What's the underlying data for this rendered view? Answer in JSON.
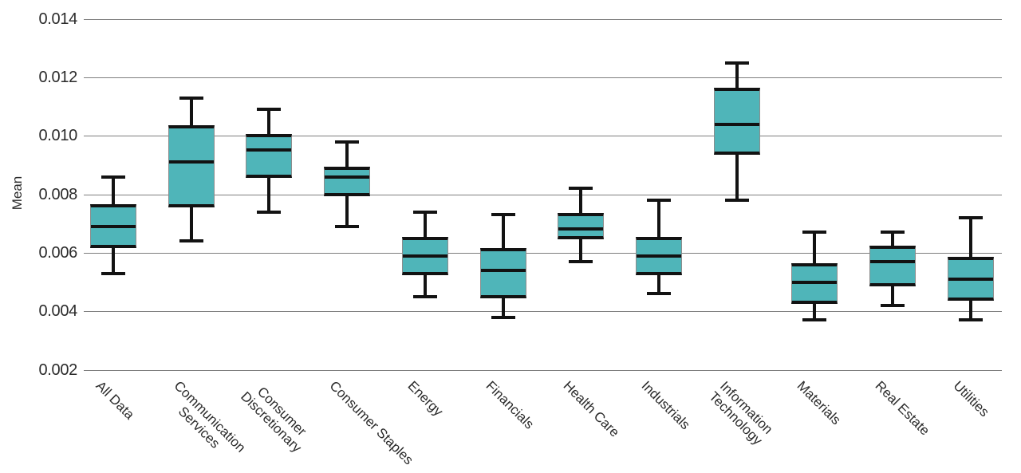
{
  "chart_data": {
    "type": "box",
    "title": "",
    "xlabel": "",
    "ylabel": "Mean",
    "ylim": [
      0.002,
      0.014
    ],
    "yticks": [
      0.002,
      0.004,
      0.006,
      0.008,
      0.01,
      0.012,
      0.014
    ],
    "ytick_labels": [
      "0.002",
      "0.004",
      "0.006",
      "0.008",
      "0.010",
      "0.012",
      "0.014"
    ],
    "grid": true,
    "legend": false,
    "box_fill_color": "#4FB5B9",
    "line_color": "#121212",
    "gridline_color": "#7E7E7E",
    "text_color": "#2A2A2A",
    "categories": [
      "All Data",
      "Communication Services",
      "Consumer Discretionary",
      "Consumer Staples",
      "Energy",
      "Financials",
      "Health Care",
      "Industrials",
      "Information Technology",
      "Materials",
      "Real Estate",
      "Utilities"
    ],
    "boxes": [
      {
        "name": "All Data",
        "label_lines": [
          "All Data"
        ],
        "whisker_low": 0.0053,
        "q1": 0.0062,
        "median": 0.0069,
        "q3": 0.0076,
        "whisker_high": 0.0086
      },
      {
        "name": "Communication Services",
        "label_lines": [
          "Communication",
          "Services"
        ],
        "whisker_low": 0.0064,
        "q1": 0.0076,
        "median": 0.0091,
        "q3": 0.0103,
        "whisker_high": 0.0113
      },
      {
        "name": "Consumer Discretionary",
        "label_lines": [
          "Consumer",
          "Discretionary"
        ],
        "whisker_low": 0.0074,
        "q1": 0.0086,
        "median": 0.0095,
        "q3": 0.01,
        "whisker_high": 0.0109
      },
      {
        "name": "Consumer Staples",
        "label_lines": [
          "Consumer Staples"
        ],
        "whisker_low": 0.0069,
        "q1": 0.008,
        "median": 0.0086,
        "q3": 0.0089,
        "whisker_high": 0.0098
      },
      {
        "name": "Energy",
        "label_lines": [
          "Energy"
        ],
        "whisker_low": 0.0045,
        "q1": 0.0053,
        "median": 0.0059,
        "q3": 0.0065,
        "whisker_high": 0.0074
      },
      {
        "name": "Financials",
        "label_lines": [
          "Financials"
        ],
        "whisker_low": 0.0038,
        "q1": 0.0045,
        "median": 0.0054,
        "q3": 0.0061,
        "whisker_high": 0.0073
      },
      {
        "name": "Health Care",
        "label_lines": [
          "Health Care"
        ],
        "whisker_low": 0.0057,
        "q1": 0.0065,
        "median": 0.0068,
        "q3": 0.0073,
        "whisker_high": 0.0082
      },
      {
        "name": "Industrials",
        "label_lines": [
          "Industrials"
        ],
        "whisker_low": 0.0046,
        "q1": 0.0053,
        "median": 0.0059,
        "q3": 0.0065,
        "whisker_high": 0.0078
      },
      {
        "name": "Information Technology",
        "label_lines": [
          "Information",
          "Technology"
        ],
        "whisker_low": 0.0078,
        "q1": 0.0094,
        "median": 0.0104,
        "q3": 0.0116,
        "whisker_high": 0.0125
      },
      {
        "name": "Materials",
        "label_lines": [
          "Materials"
        ],
        "whisker_low": 0.0037,
        "q1": 0.0043,
        "median": 0.005,
        "q3": 0.0056,
        "whisker_high": 0.0067
      },
      {
        "name": "Real Estate",
        "label_lines": [
          "Real Estate"
        ],
        "whisker_low": 0.0042,
        "q1": 0.0049,
        "median": 0.0057,
        "q3": 0.0062,
        "whisker_high": 0.0067
      },
      {
        "name": "Utilities",
        "label_lines": [
          "Utilities"
        ],
        "whisker_low": 0.0037,
        "q1": 0.0044,
        "median": 0.0051,
        "q3": 0.0058,
        "whisker_high": 0.0072
      }
    ]
  }
}
